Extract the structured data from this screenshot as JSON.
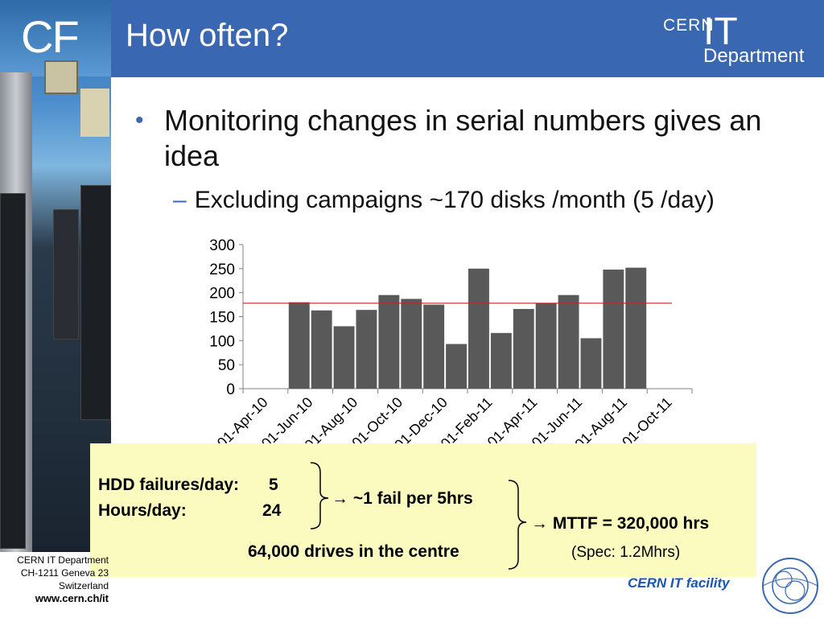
{
  "header": {
    "badge": "CF",
    "title": "How often?",
    "logo": {
      "cern": "CERN",
      "it": "IT",
      "department": "Department"
    }
  },
  "bullets": {
    "main": "Monitoring changes in serial numbers gives an idea",
    "sub": "Excluding campaigns ~170 disks /month (5 /day)"
  },
  "chart_data": {
    "type": "bar",
    "title": "",
    "xlabel": "",
    "ylabel": "",
    "ylim": [
      0,
      300
    ],
    "yticks": [
      "0",
      "50",
      "100",
      "150",
      "200",
      "250",
      "300"
    ],
    "xtick_labels": [
      "01-Apr-10",
      "01-Jun-10",
      "01-Aug-10",
      "01-Oct-10",
      "01-Dec-10",
      "01-Feb-11",
      "01-Apr-11",
      "01-Jun-11",
      "01-Aug-11",
      "01-Oct-11"
    ],
    "categories": [
      "Apr-10",
      "May-10",
      "Jun-10",
      "Jul-10",
      "Aug-10",
      "Sep-10",
      "Oct-10",
      "Nov-10",
      "Dec-10",
      "Jan-11",
      "Feb-11",
      "Mar-11",
      "Apr-11",
      "May-11",
      "Jun-11",
      "Jul-11",
      "Aug-11",
      "Sep-11",
      "Oct-11",
      "Nov-11"
    ],
    "values": [
      0,
      0,
      180,
      163,
      130,
      164,
      195,
      187,
      175,
      93,
      250,
      116,
      166,
      178,
      195,
      105,
      248,
      252,
      0,
      0
    ],
    "reference_line": 178,
    "grid": false,
    "bar_color": "#595959",
    "line_color": "#c0282a"
  },
  "note": {
    "hdd_label": "HDD failures/day:",
    "hdd_value": "5",
    "hours_label": "Hours/day:",
    "hours_value": "24",
    "fail_rate": "→ ~1 fail per 5hrs",
    "mttf": "→ MTTF = 320,000 hrs",
    "drives": "64,000 drives in the centre",
    "spec": "(Spec: 1.2Mhrs)"
  },
  "footer": {
    "line1": "CERN IT Department",
    "line2": "CH-1211 Geneva 23",
    "line3": "Switzerland",
    "url": "www.cern.ch/it",
    "facility": "CERN IT facility"
  },
  "colors": {
    "accent": "#3a67b2",
    "note_bg": "#fbfbc0",
    "facility": "#1a57b0"
  }
}
